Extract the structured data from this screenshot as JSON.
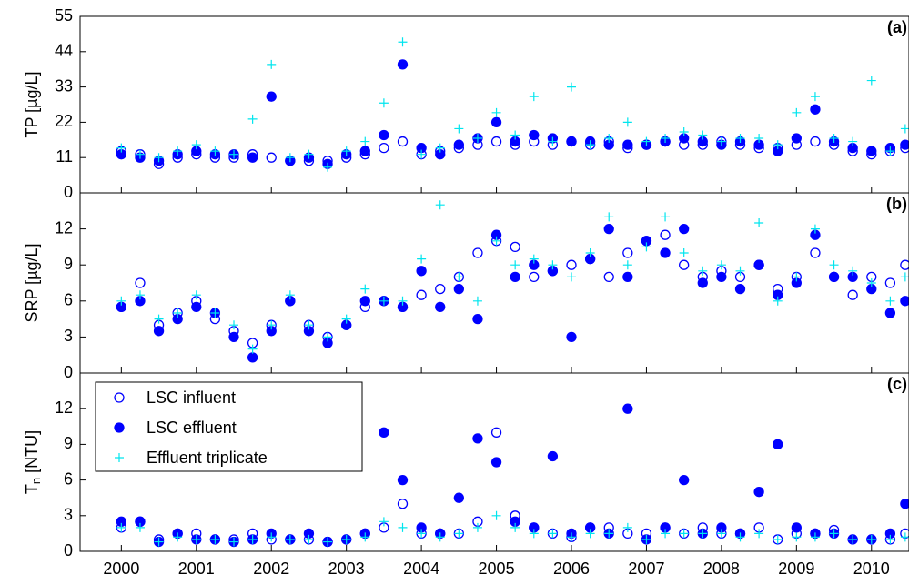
{
  "chart_data": [
    {
      "type": "scatter",
      "panel_label": "(a)",
      "ylabel": "TP [µg/L]",
      "x": [
        2000,
        2000.25,
        2000.5,
        2000.75,
        2001,
        2001.25,
        2001.5,
        2001.75,
        2002,
        2002.25,
        2002.5,
        2002.75,
        2003,
        2003.25,
        2003.5,
        2003.75,
        2004,
        2004.25,
        2004.5,
        2004.75,
        2005,
        2005.25,
        2005.5,
        2005.75,
        2006,
        2006.25,
        2006.5,
        2006.75,
        2007,
        2007.25,
        2007.5,
        2007.75,
        2008,
        2008.25,
        2008.5,
        2008.75,
        2009,
        2009.25,
        2009.5,
        2009.75,
        2010,
        2010.25,
        2010.45
      ],
      "series": [
        {
          "color": "#0000ff",
          "marker": "open",
          "values": [
            13,
            12,
            9,
            11,
            12,
            11,
            11,
            12,
            11,
            10,
            10,
            10,
            11,
            12,
            14,
            16,
            12,
            13,
            14,
            15,
            16,
            15,
            16,
            15,
            16,
            15,
            16,
            14,
            15,
            16,
            15,
            15,
            16,
            15,
            14,
            14,
            15,
            16,
            15,
            13,
            12,
            13,
            14
          ]
        },
        {
          "color": "#0000ff",
          "marker": "filled",
          "values": [
            12,
            11,
            10,
            12,
            13,
            12,
            12,
            11,
            30,
            10,
            11,
            9,
            12,
            13,
            18,
            40,
            14,
            12,
            15,
            17,
            22,
            16,
            18,
            17,
            16,
            16,
            15,
            15,
            15,
            16,
            17,
            16,
            15,
            16,
            15,
            13,
            17,
            26,
            16,
            14,
            13,
            14,
            15
          ]
        },
        {
          "color": "#00e5ee",
          "marker": "plus",
          "values": [
            14,
            12,
            11,
            13,
            15,
            13,
            12,
            23,
            40,
            11,
            12,
            8,
            13,
            16,
            28,
            47,
            12,
            14,
            20,
            17,
            25,
            18,
            30,
            16,
            33,
            15,
            17,
            22,
            16,
            17,
            19,
            18,
            16,
            17,
            17,
            15,
            25,
            30,
            17,
            16,
            35,
            13,
            20
          ]
        }
      ],
      "xlim": [
        1999.45,
        2010.5
      ],
      "ylim": [
        0,
        55
      ],
      "yticks": [
        0,
        11,
        22,
        33,
        44,
        55
      ]
    },
    {
      "type": "scatter",
      "panel_label": "(b)",
      "ylabel": "SRP [µg/L]",
      "x": [
        2000,
        2000.25,
        2000.5,
        2000.75,
        2001,
        2001.25,
        2001.5,
        2001.75,
        2002,
        2002.25,
        2002.5,
        2002.75,
        2003,
        2003.25,
        2003.5,
        2003.75,
        2004,
        2004.25,
        2004.5,
        2004.75,
        2005,
        2005.25,
        2005.5,
        2005.75,
        2006,
        2006.25,
        2006.5,
        2006.75,
        2007,
        2007.25,
        2007.5,
        2007.75,
        2008,
        2008.25,
        2008.5,
        2008.75,
        2009,
        2009.25,
        2009.5,
        2009.75,
        2010,
        2010.25,
        2010.45
      ],
      "series": [
        {
          "color": "#0000ff",
          "marker": "open",
          "values": [
            5.5,
            7.5,
            4,
            5,
            6,
            4.5,
            3.5,
            2.5,
            4,
            6,
            4,
            3,
            4,
            5.5,
            6,
            5.5,
            6.5,
            7,
            8,
            10,
            11,
            10.5,
            8,
            8.5,
            9,
            9.5,
            8,
            10,
            11,
            11.5,
            9,
            8,
            8.5,
            8,
            9,
            7,
            8,
            10,
            8,
            6.5,
            8,
            7.5,
            9
          ]
        },
        {
          "color": "#0000ff",
          "marker": "filled",
          "values": [
            5.5,
            6,
            3.5,
            4.5,
            5.5,
            5,
            3,
            1.3,
            3.5,
            6,
            3.5,
            2.5,
            4,
            6,
            6,
            5.5,
            8.5,
            5.5,
            7,
            4.5,
            11.5,
            8,
            9,
            8.5,
            3,
            9.5,
            12,
            8,
            11,
            10,
            12,
            7.5,
            8,
            7,
            9,
            6.5,
            7.5,
            11.5,
            8,
            8,
            7,
            5,
            6
          ]
        },
        {
          "color": "#00e5ee",
          "marker": "plus",
          "values": [
            6,
            6.5,
            4.5,
            5,
            6.5,
            5,
            4,
            2,
            4,
            6.5,
            4,
            3,
            4.5,
            7,
            6,
            6,
            9.5,
            14,
            8,
            6,
            11,
            9,
            9.5,
            9,
            8,
            10,
            13,
            9,
            10.5,
            13,
            10,
            8.5,
            9,
            8.5,
            12.5,
            6,
            8,
            12,
            9,
            8.5,
            7.5,
            6,
            8
          ]
        }
      ],
      "xlim": [
        1999.45,
        2010.5
      ],
      "ylim": [
        0,
        15
      ],
      "yticks": [
        0,
        3,
        6,
        9,
        12
      ]
    },
    {
      "type": "scatter",
      "panel_label": "(c)",
      "ylabel_main": "T",
      "ylabel_sub": "n",
      "ylabel_unit": "[NTU]",
      "x": [
        2000,
        2000.25,
        2000.5,
        2000.75,
        2001,
        2001.25,
        2001.5,
        2001.75,
        2002,
        2002.25,
        2002.5,
        2002.75,
        2003,
        2003.25,
        2003.5,
        2003.75,
        2004,
        2004.25,
        2004.5,
        2004.75,
        2005,
        2005.25,
        2005.5,
        2005.75,
        2006,
        2006.25,
        2006.5,
        2006.75,
        2007,
        2007.25,
        2007.5,
        2007.75,
        2008,
        2008.25,
        2008.5,
        2008.75,
        2009,
        2009.25,
        2009.5,
        2009.75,
        2010,
        2010.25,
        2010.45
      ],
      "series": [
        {
          "name": "LSC influent",
          "color": "#0000ff",
          "marker": "open",
          "values": [
            2,
            2.5,
            1,
            1.5,
            1.5,
            1,
            1,
            1.5,
            1,
            1,
            1,
            0.8,
            1,
            1.5,
            2,
            4,
            1.5,
            1.5,
            1.5,
            2.5,
            10,
            3,
            2,
            1.5,
            1.2,
            2,
            2,
            1.5,
            1.5,
            2,
            1.5,
            2,
            1.5,
            1.5,
            2,
            1,
            1.5,
            1.5,
            1.8,
            1,
            1,
            1,
            1.5
          ]
        },
        {
          "name": "LSC effluent",
          "color": "#0000ff",
          "marker": "filled",
          "values": [
            2.5,
            2.5,
            0.8,
            1.5,
            1,
            1,
            0.8,
            1,
            1.5,
            1,
            1.5,
            0.8,
            1,
            1.5,
            10,
            6,
            2,
            1.5,
            4.5,
            9.5,
            7.5,
            2.5,
            2,
            8,
            1.5,
            2,
            1.5,
            12,
            1,
            2,
            6,
            1.5,
            2,
            1.5,
            5,
            9,
            2,
            1.5,
            1.5,
            1,
            1,
            1.5,
            4
          ]
        },
        {
          "name": "Effluent triplicate",
          "color": "#00e5ee",
          "marker": "plus",
          "values": [
            2,
            2,
            0.8,
            1.2,
            1,
            1,
            0.8,
            1,
            1.2,
            1,
            1,
            0.8,
            1,
            1.2,
            2.5,
            2,
            1.5,
            1.2,
            1.5,
            2,
            3,
            2,
            1.5,
            1.5,
            1.2,
            1.5,
            1.5,
            2,
            1,
            1.5,
            1.5,
            1.5,
            1.5,
            1.2,
            1.5,
            1,
            1.2,
            1.2,
            1.5,
            1,
            1,
            1,
            1.2
          ]
        }
      ],
      "xlim": [
        1999.45,
        2010.5
      ],
      "ylim": [
        0,
        15
      ],
      "yticks": [
        0,
        3,
        6,
        9,
        12
      ],
      "xticks": [
        2000,
        2001,
        2002,
        2003,
        2004,
        2005,
        2006,
        2007,
        2008,
        2009,
        2010
      ],
      "legend": "upper left"
    }
  ]
}
